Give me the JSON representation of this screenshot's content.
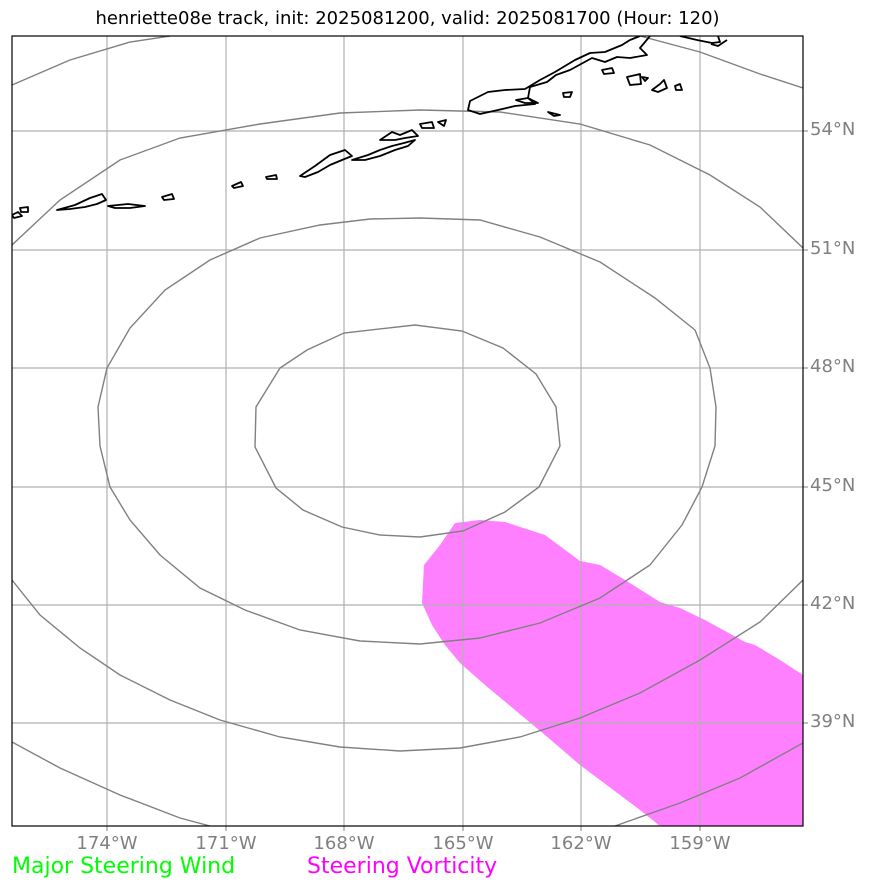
{
  "title": "henriette08e track, init: 2025081200, valid: 2025081700 (Hour: 120)",
  "lat_labels": [
    "54°N",
    "51°N",
    "48°N",
    "45°N",
    "42°N",
    "39°N"
  ],
  "lon_labels": [
    "174°W",
    "171°W",
    "168°W",
    "165°W",
    "162°W",
    "159°W"
  ],
  "legend": [
    {
      "label": "Major Steering Wind",
      "color": "#00ff00"
    },
    {
      "label": "Steering Vorticity",
      "color": "#ff00ff"
    }
  ],
  "colors": {
    "grid": "#b0b0b0",
    "range_rings": "#808080",
    "coastline": "#000000",
    "vorticity_fill": "#ff80ff"
  }
}
